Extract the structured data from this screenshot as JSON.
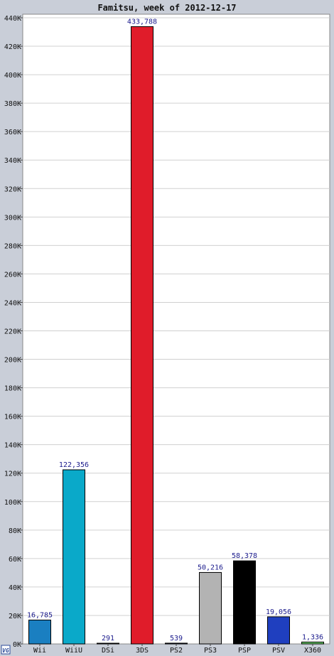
{
  "chart_data": {
    "type": "bar",
    "title": "Famitsu, week of 2012-12-17",
    "categories": [
      "Wii",
      "WiiU",
      "DSi",
      "3DS",
      "PS2",
      "PS3",
      "PSP",
      "PSV",
      "X360"
    ],
    "values": [
      16785,
      122356,
      291,
      433788,
      539,
      50216,
      58378,
      19056,
      1336
    ],
    "value_labels": [
      "16,785",
      "122,356",
      "291",
      "433,788",
      "539",
      "50,216",
      "58,378",
      "19,056",
      "1,336"
    ],
    "bar_colors": [
      "#1a7fc1",
      "#0aa9c9",
      "#1b1b5e",
      "#e01c2a",
      "#1b1b5e",
      "#b3b3b3",
      "#000000",
      "#1f3fbf",
      "#66cc66"
    ],
    "ylim": [
      0,
      440000
    ],
    "y_ticks": [
      0,
      20000,
      40000,
      60000,
      80000,
      100000,
      120000,
      140000,
      160000,
      180000,
      200000,
      220000,
      240000,
      260000,
      280000,
      300000,
      320000,
      340000,
      360000,
      380000,
      400000,
      420000,
      440000
    ],
    "y_tick_labels": [
      "0K",
      "20K",
      "40K",
      "60K",
      "80K",
      "100K",
      "120K",
      "140K",
      "160K",
      "180K",
      "200K",
      "220K",
      "240K",
      "260K",
      "280K",
      "300K",
      "320K",
      "340K",
      "360K",
      "380K",
      "400K",
      "420K",
      "440K"
    ],
    "grid": true,
    "legend": "none",
    "colors": {
      "background": "#c9ced8",
      "plot_background": "#ffffff",
      "gridline": "#d0d0d0",
      "value_label": "#1a1a8c"
    },
    "logo_text": "VG"
  }
}
